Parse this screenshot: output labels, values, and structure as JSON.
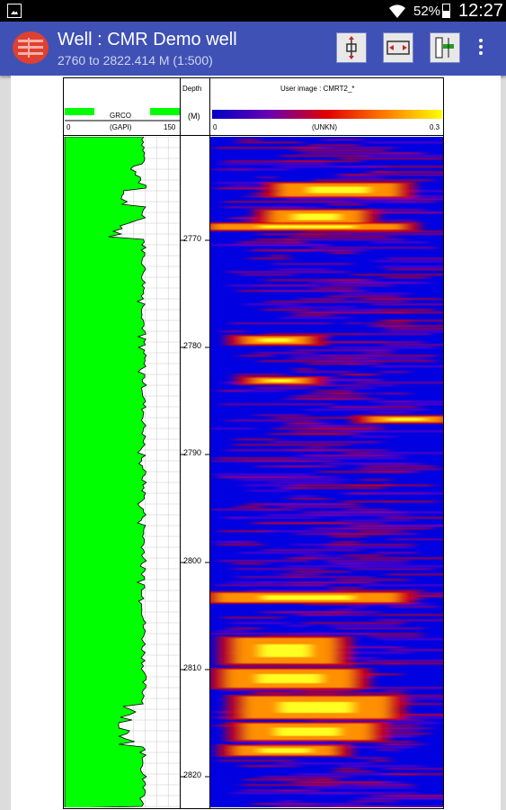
{
  "status_bar": {
    "battery_percent": "52%",
    "time": "12:27",
    "icons": [
      "gallery-notification-icon",
      "wifi-icon",
      "battery-icon"
    ]
  },
  "app_bar": {
    "title": "Well : CMR Demo well",
    "subtitle": "2760 to 2822.414 M (1:500)",
    "toolbar_icons": [
      "scale-vertical-icon",
      "scale-horizontal-icon",
      "track-settings-icon",
      "overflow-menu-icon"
    ]
  },
  "log": {
    "gr_track": {
      "curve_name": "GRCO",
      "unit": "(GAPI)",
      "scale_min": "0",
      "scale_max": "150",
      "fill_color": "#00ff00"
    },
    "depth_track": {
      "header": "Depth",
      "unit": "(M)",
      "labels": [
        "2770",
        "2780",
        "2790",
        "2800",
        "2810",
        "2820"
      ]
    },
    "image_track": {
      "title": "User image : CMRT2_*",
      "unit": "(UNKN)",
      "scale_min": "0",
      "scale_max": "0.3",
      "background_color": "#0000e0"
    }
  }
}
